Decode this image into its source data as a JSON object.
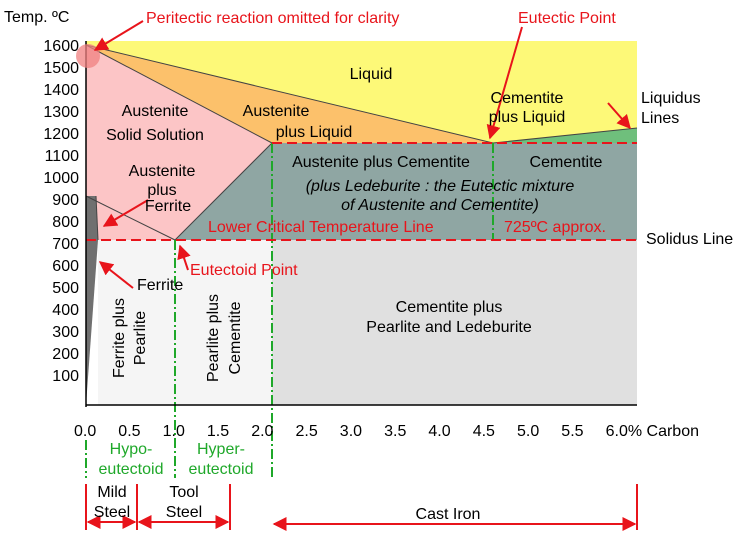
{
  "axes": {
    "y_title": "Temp. ºC",
    "y_ticks": [
      "1600",
      "1500",
      "1400",
      "1300",
      "1200",
      "1100",
      "1000",
      "900",
      "800",
      "700",
      "600",
      "500",
      "400",
      "300",
      "200",
      "100"
    ],
    "x_ticks": [
      "0.0",
      "0.5",
      "1.0",
      "1.5",
      "2.0",
      "2.5",
      "3.0",
      "3.5",
      "4.0",
      "4.5",
      "5.0",
      "5.5",
      "6.0% Carbon"
    ]
  },
  "annotations": {
    "peritectic": "Peritectic reaction omitted for clarity",
    "eutectic_point": "Eutectic Point",
    "eutectoid_point": "Eutectoid Point",
    "lower_critical": "Lower Critical  Temperature Line",
    "approx_725": "725ºC approx."
  },
  "regions": {
    "liquid": "Liquid",
    "austenite_ss_1": "Austenite",
    "austenite_ss_2": "Solid Solution",
    "aust_liquid_1": "Austenite",
    "aust_liquid_2": "plus Liquid",
    "cem_liquid_1": "Cementite",
    "cem_liquid_2": "plus Liquid",
    "aust_ferrite_1": "Austenite",
    "aust_ferrite_2": "plus",
    "aust_ferrite_3": "Ferrite",
    "aust_cementite": "Austenite plus Cementite",
    "ledeburite_1": "(plus Ledeburite : the Eutectic mixture",
    "ledeburite_2": "of Austenite and Cementite)",
    "cementite": "Cementite",
    "ferrite": "Ferrite",
    "ferrite_pearlite_1": "Ferrite plus",
    "ferrite_pearlite_2": "Pearlite",
    "pearlite_cem_1": "Pearlite plus",
    "pearlite_cem_2": "Cementite",
    "cem_pearl_led_1": "Cementite plus",
    "cem_pearl_led_2": "Pearlite and Ledeburite"
  },
  "side_labels": {
    "liquidus_1": "Liquidus",
    "liquidus_2": "Lines",
    "solidus": "Solidus Line"
  },
  "classes": {
    "hypo_1": "Hypo-",
    "hypo_2": "eutectoid",
    "hyper_1": "Hyper-",
    "hyper_2": "eutectoid"
  },
  "materials": {
    "mild_1": "Mild",
    "mild_2": "Steel",
    "tool_1": "Tool",
    "tool_2": "Steel",
    "cast_iron": "Cast Iron"
  },
  "colors": {
    "liquid": "#fdf978",
    "austenite_liquid": "#fcc16b",
    "austenite": "#fcc5c6",
    "cementite_liquid": "#6fbf7c",
    "two_phase": "#8fa6a3",
    "lower_left": "#f5f5f5",
    "lower_right": "#e0e0e0",
    "annotation": "#e8141b",
    "phase_boundary_green": "#1fa82a"
  }
}
